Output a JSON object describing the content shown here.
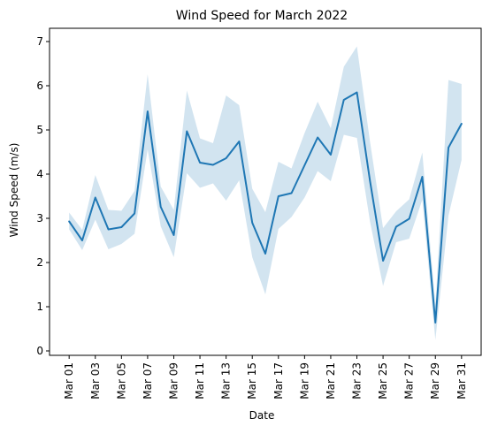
{
  "chart_data": {
    "type": "line",
    "title": "Wind Speed for March 2022",
    "xlabel": "Date",
    "ylabel": "Wind Speed (m/s)",
    "ylim": [
      -0.1,
      7.3
    ],
    "yticks": [
      0,
      1,
      2,
      3,
      4,
      5,
      6,
      7
    ],
    "x": [
      "2022-03-01",
      "2022-03-02",
      "2022-03-03",
      "2022-03-04",
      "2022-03-05",
      "2022-03-06",
      "2022-03-07",
      "2022-03-08",
      "2022-03-09",
      "2022-03-10",
      "2022-03-11",
      "2022-03-12",
      "2022-03-13",
      "2022-03-14",
      "2022-03-15",
      "2022-03-16",
      "2022-03-17",
      "2022-03-18",
      "2022-03-19",
      "2022-03-20",
      "2022-03-21",
      "2022-03-22",
      "2022-03-23",
      "2022-03-24",
      "2022-03-25",
      "2022-03-26",
      "2022-03-27",
      "2022-03-28",
      "2022-03-29",
      "2022-03-30",
      "2022-03-31"
    ],
    "xticks": [
      {
        "date": "2022-03-01",
        "label": "Mar 01"
      },
      {
        "date": "2022-03-03",
        "label": "Mar 03"
      },
      {
        "date": "2022-03-05",
        "label": "Mar 05"
      },
      {
        "date": "2022-03-07",
        "label": "Mar 07"
      },
      {
        "date": "2022-03-09",
        "label": "Mar 09"
      },
      {
        "date": "2022-03-11",
        "label": "Mar 11"
      },
      {
        "date": "2022-03-13",
        "label": "Mar 13"
      },
      {
        "date": "2022-03-15",
        "label": "Mar 15"
      },
      {
        "date": "2022-03-17",
        "label": "Mar 17"
      },
      {
        "date": "2022-03-19",
        "label": "Mar 19"
      },
      {
        "date": "2022-03-21",
        "label": "Mar 21"
      },
      {
        "date": "2022-03-23",
        "label": "Mar 23"
      },
      {
        "date": "2022-03-25",
        "label": "Mar 25"
      },
      {
        "date": "2022-03-27",
        "label": "Mar 27"
      },
      {
        "date": "2022-03-29",
        "label": "Mar 29"
      },
      {
        "date": "2022-03-31",
        "label": "Mar 31"
      }
    ],
    "series": [
      {
        "values": [
          2.93,
          2.5,
          3.47,
          2.75,
          2.8,
          3.11,
          5.42,
          3.26,
          2.62,
          4.97,
          4.26,
          4.21,
          4.36,
          4.74,
          2.9,
          2.2,
          3.5,
          3.57,
          4.2,
          4.83,
          4.44,
          5.68,
          5.85,
          3.85,
          2.04,
          2.81,
          2.99,
          3.94,
          0.64,
          4.6,
          5.14
        ],
        "lower": [
          2.75,
          2.28,
          2.97,
          2.3,
          2.42,
          2.65,
          4.56,
          2.82,
          2.12,
          4.02,
          3.69,
          3.79,
          3.4,
          3.86,
          2.12,
          1.28,
          2.76,
          3.03,
          3.47,
          4.07,
          3.84,
          4.89,
          4.82,
          2.93,
          1.47,
          2.46,
          2.54,
          3.42,
          0.25,
          3.06,
          4.32
        ],
        "upper": [
          3.13,
          2.74,
          3.98,
          3.19,
          3.17,
          3.62,
          6.26,
          3.72,
          3.19,
          5.89,
          4.81,
          4.7,
          5.78,
          5.56,
          3.67,
          3.14,
          4.28,
          4.13,
          4.93,
          5.64,
          5.04,
          6.43,
          6.89,
          4.74,
          2.78,
          3.16,
          3.43,
          4.49,
          1.04,
          6.13,
          6.04
        ],
        "color": "#1f77b4",
        "band_color": "#1f77b4"
      }
    ]
  }
}
